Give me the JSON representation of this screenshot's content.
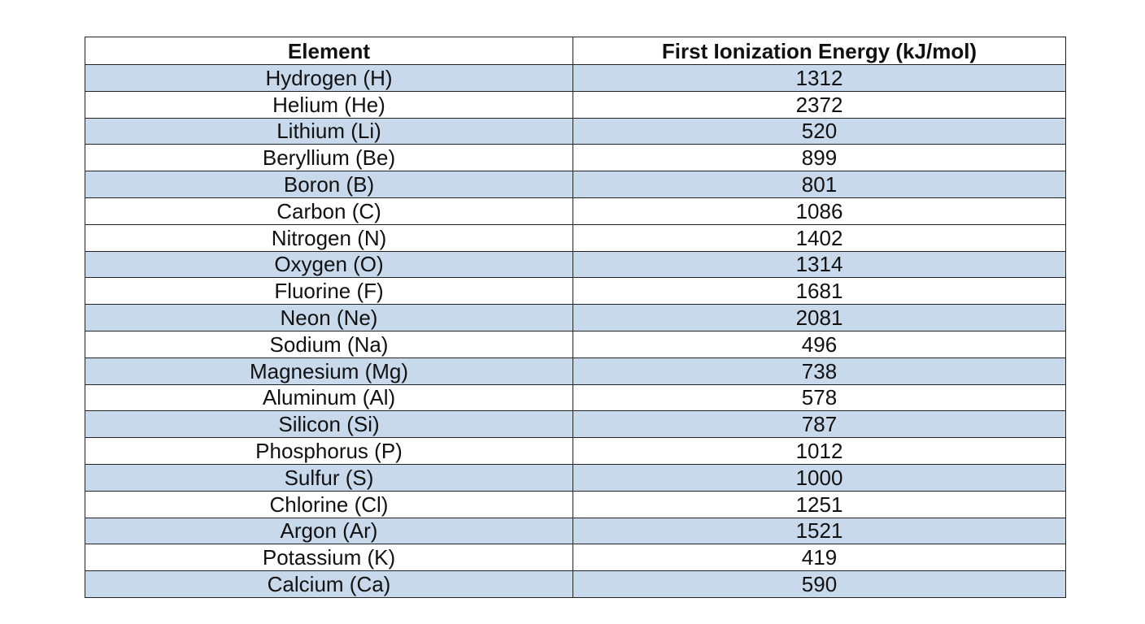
{
  "table": {
    "header": [
      "Element",
      "First Ionization Energy (kJ/mol)"
    ],
    "rows": [
      [
        "Hydrogen (H)",
        1312
      ],
      [
        "Helium (He)",
        2372
      ],
      [
        "Lithium (Li)",
        520
      ],
      [
        "Beryllium (Be)",
        899
      ],
      [
        "Boron (B)",
        801
      ],
      [
        "Carbon (C)",
        1086
      ],
      [
        "Nitrogen (N)",
        1402
      ],
      [
        "Oxygen (O)",
        1314
      ],
      [
        "Fluorine (F)",
        1681
      ],
      [
        "Neon (Ne)",
        2081
      ],
      [
        "Sodium (Na)",
        496
      ],
      [
        "Magnesium (Mg)",
        738
      ],
      [
        "Aluminum (Al)",
        578
      ],
      [
        "Silicon (Si)",
        787
      ],
      [
        "Phosphorus (P)",
        1012
      ],
      [
        "Sulfur (S)",
        1000
      ],
      [
        "Chlorine (Cl)",
        1251
      ],
      [
        "Argon (Ar)",
        1521
      ],
      [
        "Potassium (K)",
        419
      ],
      [
        "Calcium (Ca)",
        590
      ]
    ]
  }
}
